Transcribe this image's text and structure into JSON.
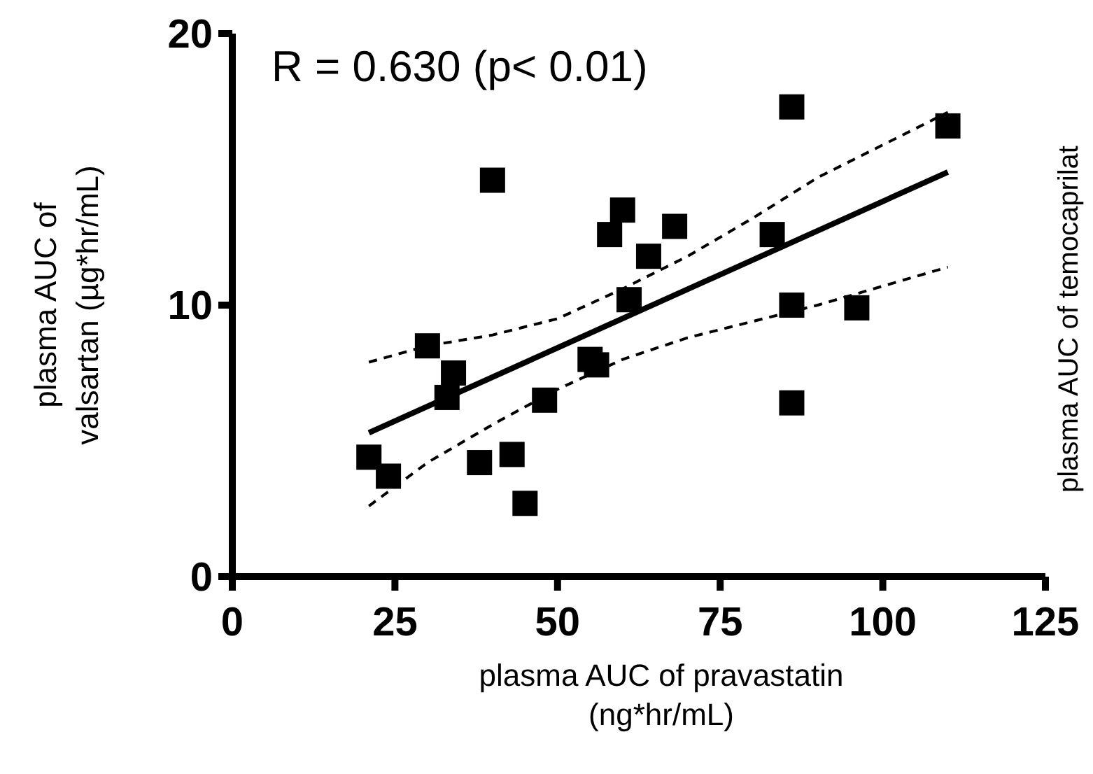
{
  "chart_data": {
    "type": "scatter",
    "xlabel": "plasma AUC of pravastatin\n(ng*hr/mL)",
    "ylabel": "plasma AUC of\nvalsartan (µg*hr/mL)",
    "annotations": [
      "R = 0.630 (p< 0.01)",
      "plasma AUC of temocaprilat"
    ],
    "xlim": [
      0,
      125
    ],
    "xticks": [
      0,
      25,
      50,
      75,
      100,
      125
    ],
    "ylim": [
      0,
      20
    ],
    "yticks": [
      0,
      10,
      20
    ],
    "grid": false,
    "series": [
      {
        "color": "#000000",
        "marker": "square",
        "x": [
          21,
          24,
          30,
          33,
          34,
          38,
          40,
          43,
          45,
          48,
          55,
          56,
          58,
          60,
          61,
          64,
          68,
          83,
          86,
          86,
          86,
          96,
          110
        ],
        "values": [
          4.4,
          3.7,
          8.5,
          6.6,
          7.5,
          4.2,
          14.6,
          4.5,
          2.7,
          6.5,
          8.0,
          7.8,
          12.6,
          13.5,
          10.2,
          11.8,
          12.9,
          12.6,
          17.3,
          10.0,
          6.4,
          9.9,
          16.6
        ]
      },
      {
        "type": "line",
        "color": "#000000",
        "line_style": "solid",
        "x": [
          21,
          110
        ],
        "values": [
          5.3,
          14.9
        ]
      },
      {
        "type": "line",
        "color": "#000000",
        "line_style": "dashed",
        "x": [
          21,
          30,
          40,
          50,
          60,
          70,
          80,
          90,
          100,
          110
        ],
        "values": [
          7.9,
          8.5,
          8.9,
          9.5,
          10.6,
          11.8,
          13.2,
          14.7,
          15.9,
          17.1
        ]
      },
      {
        "type": "line",
        "color": "#000000",
        "line_style": "dashed",
        "x": [
          21,
          30,
          40,
          50,
          60,
          70,
          80,
          90,
          100,
          110
        ],
        "values": [
          2.6,
          4.2,
          5.6,
          6.9,
          8.0,
          8.8,
          9.4,
          10.0,
          10.7,
          11.4
        ]
      }
    ]
  }
}
